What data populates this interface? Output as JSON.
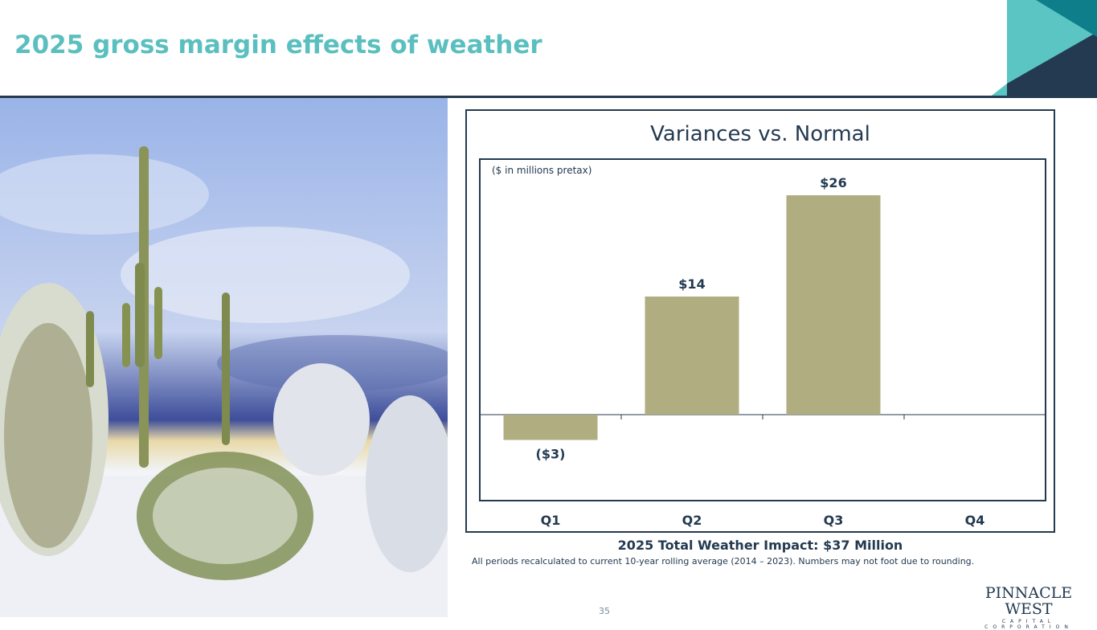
{
  "slide": {
    "title": "2025 gross margin effects of weather",
    "page_number": "35"
  },
  "chart_data": {
    "type": "bar",
    "title": "Variances vs. Normal",
    "subtitle": "($ in millions pretax)",
    "categories": [
      "Q1",
      "Q2",
      "Q3",
      "Q4"
    ],
    "values": [
      -3,
      14,
      26,
      null
    ],
    "data_labels": [
      "($3)",
      "$14",
      "$26",
      ""
    ],
    "ylim": [
      -10,
      30
    ],
    "grid": false,
    "bar_color": "#B0AE80"
  },
  "summary": {
    "total_label": "2025 Total Weather Impact: $37 Million",
    "footnote": "All periods recalculated to current 10-year rolling average (2014 – 2023). Numbers may not foot due to rounding."
  },
  "logo": {
    "main": "PINNACLE WEST",
    "sub": "CAPITAL CORPORATION"
  },
  "colors": {
    "title": "#5BBFBF",
    "navy": "#233A50",
    "teal": "#5BC5C3",
    "bar": "#B0AE80"
  }
}
